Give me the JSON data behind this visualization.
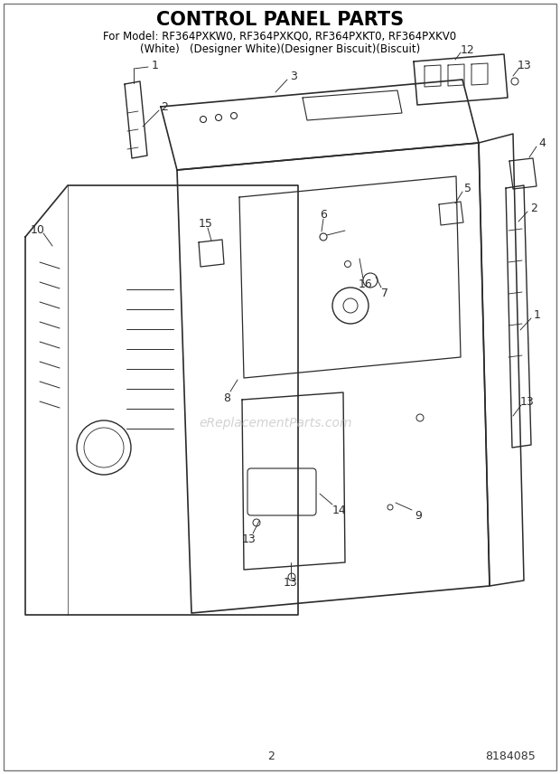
{
  "title": "CONTROL PANEL PARTS",
  "subtitle_line1": "For Model: RF364PXKW0, RF364PXKQ0, RF364PXKT0, RF364PXKV0",
  "subtitle_line2": "(White)   (Designer White)(Designer Biscuit)(Biscuit)",
  "page_number": "2",
  "part_number": "8184085",
  "watermark": "eReplacementParts.com",
  "bg": "#ffffff",
  "lc": "#2a2a2a",
  "tc": "#000000",
  "title_fs": 15,
  "sub_fs": 8.5,
  "lbl_fs": 9
}
